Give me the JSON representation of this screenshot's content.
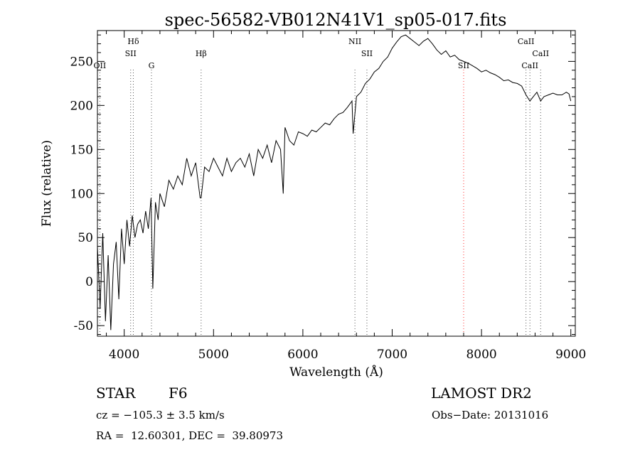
{
  "chart_data": {
    "type": "line",
    "title": "spec-56582-VB012N41V1_sp05-017.fits",
    "xlabel": "Wavelength (Å)",
    "ylabel": "Flux (relative)",
    "xlim": [
      3700,
      9050
    ],
    "ylim": [
      -62,
      285
    ],
    "xticks": [
      4000,
      5000,
      6000,
      7000,
      8000,
      9000
    ],
    "yticks": [
      -50,
      0,
      50,
      100,
      150,
      200,
      250
    ],
    "grid": false,
    "series": [
      {
        "color": "#000000",
        "x": [
          3700,
          3730,
          3760,
          3790,
          3820,
          3850,
          3880,
          3910,
          3940,
          3970,
          4000,
          4030,
          4060,
          4090,
          4120,
          4150,
          4180,
          4210,
          4240,
          4270,
          4300,
          4320,
          4350,
          4380,
          4400,
          4450,
          4500,
          4550,
          4600,
          4650,
          4700,
          4750,
          4800,
          4850,
          4861,
          4900,
          4950,
          5000,
          5050,
          5100,
          5150,
          5200,
          5250,
          5300,
          5350,
          5400,
          5450,
          5500,
          5550,
          5600,
          5650,
          5700,
          5750,
          5780,
          5800,
          5850,
          5900,
          5950,
          6000,
          6050,
          6100,
          6150,
          6200,
          6250,
          6300,
          6350,
          6400,
          6450,
          6500,
          6550,
          6563,
          6600,
          6650,
          6700,
          6750,
          6800,
          6850,
          6900,
          6950,
          7000,
          7050,
          7100,
          7150,
          7200,
          7250,
          7300,
          7350,
          7400,
          7450,
          7500,
          7550,
          7600,
          7650,
          7700,
          7750,
          7800,
          7850,
          7900,
          7950,
          8000,
          8050,
          8100,
          8150,
          8200,
          8250,
          8300,
          8350,
          8400,
          8450,
          8498,
          8542,
          8580,
          8620,
          8662,
          8700,
          8750,
          8800,
          8850,
          8900,
          8950,
          8980,
          9000
        ],
        "y": [
          40,
          -30,
          55,
          -45,
          30,
          -55,
          20,
          45,
          -20,
          60,
          20,
          70,
          40,
          75,
          50,
          65,
          70,
          55,
          80,
          60,
          95,
          -8,
          90,
          70,
          100,
          85,
          115,
          105,
          120,
          110,
          140,
          120,
          135,
          95,
          95,
          130,
          125,
          140,
          130,
          120,
          140,
          125,
          135,
          140,
          130,
          145,
          120,
          150,
          140,
          155,
          135,
          160,
          150,
          100,
          175,
          160,
          155,
          170,
          168,
          165,
          172,
          170,
          175,
          180,
          178,
          185,
          190,
          192,
          198,
          205,
          168,
          210,
          215,
          225,
          230,
          238,
          242,
          250,
          255,
          265,
          272,
          278,
          280,
          276,
          272,
          268,
          273,
          276,
          270,
          263,
          258,
          262,
          255,
          257,
          252,
          250,
          248,
          245,
          242,
          238,
          240,
          237,
          235,
          232,
          228,
          229,
          226,
          225,
          222,
          212,
          205,
          210,
          215,
          205,
          210,
          212,
          214,
          212,
          212,
          215,
          213,
          205
        ]
      }
    ],
    "lines": [
      {
        "label": "OII",
        "x": 3727,
        "tier": "b"
      },
      {
        "label": "Hδ",
        "x": 4102,
        "tier": "t"
      },
      {
        "label": "SII",
        "x": 4072,
        "tier": "m"
      },
      {
        "label": "G",
        "x": 4305,
        "tier": "b"
      },
      {
        "label": "Hβ",
        "x": 4861,
        "tier": "m"
      },
      {
        "label": "NII",
        "x": 6583,
        "tier": "t"
      },
      {
        "label": "SII",
        "x": 6717,
        "tier": "m"
      },
      {
        "label": "SII",
        "x": 7800,
        "tier": "b",
        "color": "#ff3030"
      },
      {
        "label": "CaII",
        "x": 8498,
        "tier": "t"
      },
      {
        "label": "CaII",
        "x": 8542,
        "tier": "b"
      },
      {
        "label": "CaII",
        "x": 8662,
        "tier": "m"
      }
    ]
  },
  "info": {
    "object_class": "STAR",
    "subclass": "F6",
    "survey": "LAMOST DR2",
    "cz": "cz = −105.3 ± 3.5 km/s",
    "obs_date": "Obs−Date: 20131016",
    "radec": "RA =  12.60301, DEC =  39.80973"
  }
}
